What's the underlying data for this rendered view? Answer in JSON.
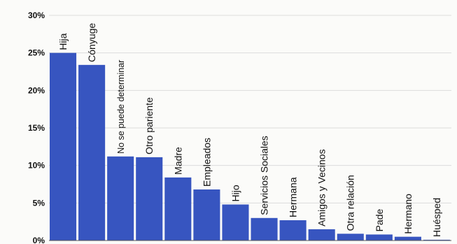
{
  "chart_data": {
    "type": "bar",
    "title": "",
    "xlabel": "",
    "ylabel": "",
    "ylim": [
      0,
      30
    ],
    "yticks": [
      "0%",
      "5%",
      "10%",
      "15%",
      "20%",
      "25%",
      "30%"
    ],
    "grid": true,
    "categories": [
      "Hija",
      "Cónyuge",
      "No se puede determinar",
      "Otro pariente",
      "Madre",
      "Empleados",
      "Hijo",
      "Servicios Sociales",
      "Hermana",
      "Amigos y Vecinos",
      "Otra relación",
      "Pade",
      "Hermano",
      "Huésped"
    ],
    "values": [
      25,
      23.4,
      11.2,
      11.1,
      8.4,
      6.8,
      4.8,
      3.0,
      2.7,
      1.5,
      0.9,
      0.8,
      0.5,
      0.1
    ],
    "bar_color": "#3755c0"
  }
}
